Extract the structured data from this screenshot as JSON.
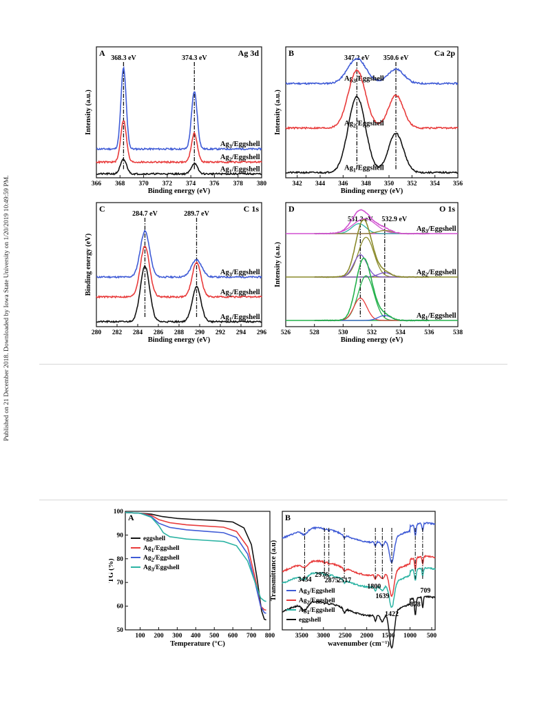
{
  "side_note": "Published on 21 December 2018. Downloaded by Iowa State University on 1/20/2019 10:49:59 PM.",
  "colors": {
    "blue": "#3f5bd6",
    "red": "#e83a3a",
    "black": "#111111",
    "teal": "#2bb3a3",
    "magenta": "#d04fd0",
    "olive": "#8a8a2a",
    "green": "#22b04a",
    "purple": "#7a52c8",
    "dark": "#333333"
  },
  "chart_data": [
    {
      "id": "fig1A",
      "type": "line",
      "panel": "A",
      "title": "Ag 3d",
      "xlabel": "Binding energy (eV)",
      "ylabel": "Intensity (a.u.)",
      "xlim": [
        366,
        380
      ],
      "ylim": [
        0,
        1
      ],
      "xticks": [
        366,
        368,
        370,
        372,
        374,
        376,
        378,
        380
      ],
      "peak_labels": [
        "368.3 eV",
        "374.3 eV"
      ],
      "peaks_ev": [
        368.3,
        374.3
      ],
      "series": [
        {
          "name": "Ag₃/Eggshell",
          "sub": "3",
          "color_key": "blue",
          "offset": 0.22,
          "peaks": [
            [
              368.3,
              0.62,
              0.22
            ],
            [
              374.3,
              0.44,
              0.24
            ]
          ]
        },
        {
          "name": "Ag₂/Eggshell",
          "sub": "2",
          "color_key": "red",
          "offset": 0.12,
          "peaks": [
            [
              368.3,
              0.32,
              0.24
            ],
            [
              374.3,
              0.22,
              0.25
            ]
          ]
        },
        {
          "name": "Ag₁/Eggshell",
          "sub": "1",
          "color_key": "black",
          "offset": 0.03,
          "peaks": [
            [
              368.3,
              0.11,
              0.26
            ],
            [
              374.3,
              0.08,
              0.26
            ]
          ]
        }
      ]
    },
    {
      "id": "fig1B",
      "type": "line",
      "panel": "B",
      "title": "Ca 2p",
      "xlabel": "Binding energy (eV)",
      "ylabel": "Intensity (a.u.)",
      "xlim": [
        341,
        356
      ],
      "ylim": [
        0,
        1
      ],
      "xticks": [
        342,
        344,
        346,
        348,
        350,
        352,
        354,
        356
      ],
      "peak_labels": [
        "347.2 eV",
        "350.6 eV"
      ],
      "peaks_ev": [
        347.2,
        350.6
      ],
      "series": [
        {
          "name": "Ag₃/Eggshell",
          "sub": "3",
          "color_key": "blue",
          "offset": 0.72,
          "peaks": [
            [
              347.2,
              0.19,
              0.8
            ],
            [
              350.6,
              0.11,
              0.7
            ]
          ]
        },
        {
          "name": "Ag₂/Eggshell",
          "sub": "2",
          "color_key": "red",
          "offset": 0.38,
          "peaks": [
            [
              347.2,
              0.44,
              0.75
            ],
            [
              350.6,
              0.25,
              0.65
            ]
          ]
        },
        {
          "name": "Ag₁/Eggshell",
          "sub": "1",
          "color_key": "black",
          "offset": 0.04,
          "peaks": [
            [
              347.2,
              0.58,
              0.75
            ],
            [
              350.6,
              0.3,
              0.65
            ]
          ]
        }
      ]
    },
    {
      "id": "fig1C",
      "type": "line",
      "panel": "C",
      "title": "C 1s",
      "xlabel": "Binding energy (eV)",
      "ylabel": "Binding energy (eV)",
      "xlim": [
        280,
        296
      ],
      "ylim": [
        0,
        1
      ],
      "xticks": [
        280,
        282,
        284,
        286,
        288,
        290,
        292,
        294,
        296
      ],
      "peak_labels": [
        "284.7 eV",
        "289.7 eV"
      ],
      "peaks_ev": [
        284.7,
        289.7
      ],
      "series": [
        {
          "name": "Ag₃/Eggshell",
          "sub": "3",
          "color_key": "blue",
          "offset": 0.4,
          "peaks": [
            [
              284.7,
              0.37,
              0.45
            ],
            [
              289.7,
              0.14,
              0.5
            ]
          ]
        },
        {
          "name": "Ag₂/Eggshell",
          "sub": "2",
          "color_key": "red",
          "offset": 0.24,
          "peaks": [
            [
              284.7,
              0.41,
              0.45
            ],
            [
              289.7,
              0.28,
              0.42
            ]
          ]
        },
        {
          "name": "Ag₁/Eggshell",
          "sub": "1",
          "color_key": "black",
          "offset": 0.04,
          "peaks": [
            [
              284.7,
              0.45,
              0.45
            ],
            [
              289.7,
              0.28,
              0.42
            ]
          ]
        }
      ]
    },
    {
      "id": "fig1D",
      "type": "line",
      "panel": "D",
      "title": "O 1s",
      "xlabel": "Binding energy (eV)",
      "ylabel": "Intensity (a.u.)",
      "xlim": [
        526,
        538
      ],
      "ylim": [
        0,
        1
      ],
      "xticks": [
        526,
        528,
        530,
        532,
        534,
        536,
        538
      ],
      "peak_labels": [
        "531.2 eV",
        "532.9 eV"
      ],
      "peaks_ev": [
        531.2,
        532.9
      ],
      "series": [
        {
          "name": "Ag₃/Eggshell",
          "sub": "3",
          "offset": 0.75,
          "base_key": "magenta",
          "components": [
            {
              "color_key": "magenta",
              "peaks": [
                [
                  531.5,
                  0.12,
                  0.8
                ]
              ]
            },
            {
              "color_key": "teal",
              "peaks": [
                [
                  531.1,
                  0.08,
                  0.5
                ]
              ]
            },
            {
              "color_key": "olive",
              "peaks": [
                [
                  532.9,
                  0.025,
                  0.5
                ]
              ]
            }
          ]
        },
        {
          "name": "Ag₂/Eggshell",
          "sub": "2",
          "offset": 0.4,
          "base_key": "olive",
          "components": [
            {
              "color_key": "olive",
              "peaks": [
                [
                  531.6,
                  0.32,
                  0.55
                ]
              ]
            },
            {
              "color_key": "purple",
              "peaks": [
                [
                  531.2,
                  0.18,
                  0.45
                ]
              ]
            },
            {
              "color_key": "purple",
              "peaks": [
                [
                  532.9,
                  0.035,
                  0.45
                ]
              ]
            }
          ]
        },
        {
          "name": "Ag₁/Eggshell",
          "sub": "1",
          "offset": 0.05,
          "base_key": "green",
          "components": [
            {
              "color_key": "green",
              "peaks": [
                [
                  531.6,
                  0.36,
                  0.55
                ]
              ]
            },
            {
              "color_key": "red",
              "peaks": [
                [
                  531.2,
                  0.18,
                  0.45
                ]
              ]
            },
            {
              "color_key": "blue",
              "peaks": [
                [
                  532.9,
                  0.04,
                  0.45
                ]
              ]
            }
          ]
        }
      ]
    },
    {
      "id": "fig2A",
      "type": "line",
      "panel": "A",
      "title": "",
      "xlabel": "Temperature (°C)",
      "ylabel": "TG (%)",
      "xlim": [
        20,
        800
      ],
      "ylim": [
        50,
        100
      ],
      "xticks": [
        100,
        200,
        300,
        400,
        500,
        600,
        700,
        800
      ],
      "yticks": [
        50,
        60,
        70,
        80,
        90,
        100
      ],
      "series": [
        {
          "name": "eggshell",
          "sub": "",
          "color_key": "black",
          "points": [
            [
              20,
              99.5
            ],
            [
              100,
              99.2
            ],
            [
              160,
              98.8
            ],
            [
              220,
              97.8
            ],
            [
              300,
              97
            ],
            [
              400,
              96.5
            ],
            [
              500,
              96.2
            ],
            [
              600,
              95.5
            ],
            [
              660,
              93
            ],
            [
              700,
              86
            ],
            [
              730,
              72
            ],
            [
              755,
              58
            ],
            [
              770,
              54.5
            ],
            [
              780,
              54.2
            ]
          ]
        },
        {
          "name": "Ag₁/Eggshell",
          "sub": "1",
          "color_key": "red",
          "points": [
            [
              20,
              99.5
            ],
            [
              100,
              99.2
            ],
            [
              160,
              98.3
            ],
            [
              200,
              96.5
            ],
            [
              260,
              95.2
            ],
            [
              350,
              94.3
            ],
            [
              450,
              93.8
            ],
            [
              550,
              93.3
            ],
            [
              620,
              91.5
            ],
            [
              680,
              85
            ],
            [
              720,
              72
            ],
            [
              750,
              60
            ],
            [
              770,
              58.5
            ],
            [
              780,
              58.3
            ]
          ]
        },
        {
          "name": "Ag₂/Eggshell",
          "sub": "2",
          "color_key": "blue",
          "points": [
            [
              20,
              99.5
            ],
            [
              100,
              99.2
            ],
            [
              160,
              97.8
            ],
            [
              200,
              95
            ],
            [
              260,
              93.2
            ],
            [
              350,
              92.2
            ],
            [
              450,
              91.6
            ],
            [
              550,
              91
            ],
            [
              620,
              89
            ],
            [
              680,
              82
            ],
            [
              720,
              70
            ],
            [
              750,
              60
            ],
            [
              770,
              57.2
            ],
            [
              780,
              57
            ]
          ]
        },
        {
          "name": "Ag₃/Eggshell",
          "sub": "3",
          "color_key": "teal",
          "points": [
            [
              20,
              99.5
            ],
            [
              100,
              99.2
            ],
            [
              160,
              97.5
            ],
            [
              200,
              94
            ],
            [
              225,
              91
            ],
            [
              260,
              89.3
            ],
            [
              350,
              88.3
            ],
            [
              450,
              87.8
            ],
            [
              550,
              87.3
            ],
            [
              620,
              85.5
            ],
            [
              680,
              79
            ],
            [
              720,
              70
            ],
            [
              750,
              63.5
            ],
            [
              770,
              62.2
            ],
            [
              780,
              62
            ]
          ]
        }
      ]
    },
    {
      "id": "fig2B",
      "type": "line",
      "panel": "B",
      "title": "",
      "xlabel": "wavenumber (cm⁻¹)",
      "ylabel": "Transmittance (a.u)",
      "xlim": [
        3950,
        420
      ],
      "ylim": [
        0,
        1
      ],
      "xticks": [
        3500,
        3000,
        2500,
        2000,
        1500,
        1000,
        500
      ],
      "band_labels": [
        "3434",
        "2976",
        "2875",
        "2517",
        "1800",
        "1639",
        "1422",
        "878",
        "709"
      ],
      "bands": [
        3434,
        2976,
        2875,
        2517,
        1800,
        1639,
        1422,
        878,
        709
      ],
      "series": [
        {
          "name": "eggshell",
          "sub": "",
          "color_key": "black",
          "offset": 0.18
        },
        {
          "name": "Ag₁/Eggshell",
          "sub": "1",
          "color_key": "teal",
          "offset": 0.42
        },
        {
          "name": "Ag₂/Eggshell",
          "sub": "2",
          "color_key": "red",
          "offset": 0.52
        },
        {
          "name": "Ag₃/Eggshell",
          "sub": "3",
          "color_key": "blue",
          "offset": 0.8
        }
      ]
    }
  ]
}
